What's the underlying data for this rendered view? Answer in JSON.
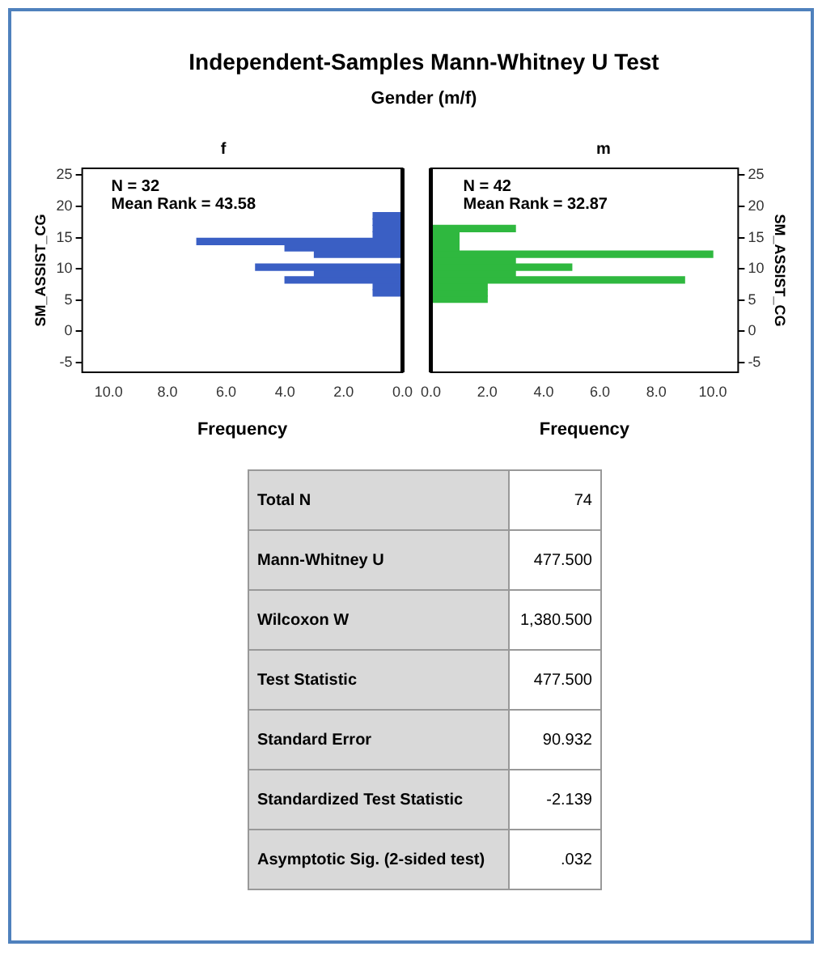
{
  "chart_data": [
    {
      "type": "other",
      "title": "Independent-Samples Mann-Whitney U Test",
      "subtitle": "Gender (m/f)"
    },
    {
      "type": "histogram",
      "title": "f",
      "orientation": "horizontal",
      "bins": [
        4.6,
        5.63,
        6.66,
        7.69,
        8.72,
        9.75,
        10.78,
        11.81,
        12.84,
        13.87,
        14.9,
        15.93,
        16.96,
        17.99,
        19.02
      ],
      "values": [
        0,
        1,
        1,
        4,
        3,
        5,
        0,
        3,
        4,
        7,
        1,
        1,
        1,
        1
      ],
      "color": "#3a5fc4",
      "xlim": [
        10.9,
        0
      ],
      "xticks": [
        {
          "value": 10,
          "label": "10.0"
        },
        {
          "value": 8,
          "label": "8.0"
        },
        {
          "value": 6,
          "label": "6.0"
        },
        {
          "value": 4,
          "label": "4.0"
        },
        {
          "value": 2,
          "label": "2.0"
        },
        {
          "value": 0,
          "label": "0.0"
        }
      ],
      "ylim": [
        -6.6,
        26.1
      ],
      "yticks": [
        -5,
        0,
        5,
        10,
        15,
        20,
        25
      ],
      "xlabel": "Frequency",
      "ylabel": "SM_ASSIST_CG",
      "annotations": [
        "N = 32",
        "Mean Rank = 43.58"
      ]
    },
    {
      "type": "histogram",
      "title": "m",
      "orientation": "horizontal",
      "bins": [
        4.6,
        5.63,
        6.66,
        7.69,
        8.72,
        9.75,
        10.78,
        11.81,
        12.84,
        13.87,
        14.9,
        15.93,
        16.96,
        17.99,
        19.02
      ],
      "values": [
        2,
        2,
        2,
        9,
        3,
        5,
        3,
        10,
        1,
        1,
        1,
        3,
        0,
        0
      ],
      "color": "#2fb83f",
      "xlim": [
        0,
        10.9
      ],
      "xticks": [
        {
          "value": 0,
          "label": "0.0"
        },
        {
          "value": 2,
          "label": "2.0"
        },
        {
          "value": 4,
          "label": "4.0"
        },
        {
          "value": 6,
          "label": "6.0"
        },
        {
          "value": 8,
          "label": "8.0"
        },
        {
          "value": 10,
          "label": "10.0"
        }
      ],
      "ylim": [
        -6.6,
        26.1
      ],
      "yticks": [
        -5,
        0,
        5,
        10,
        15,
        20,
        25
      ],
      "xlabel": "Frequency",
      "ylabel": "SM_ASSIST_CG",
      "annotations": [
        "N = 42",
        "Mean Rank = 32.87"
      ]
    },
    {
      "type": "other",
      "categories": [
        "Total N",
        "Mann-Whitney U",
        "Wilcoxon W",
        "Test Statistic",
        "Standard Error",
        "Standardized Test Statistic",
        "Asymptotic Sig. (2-sided test)"
      ],
      "value_labels": [
        "74",
        "477.500",
        "1,380.500",
        "477.500",
        "90.932",
        "-2.139",
        ".032"
      ]
    }
  ]
}
